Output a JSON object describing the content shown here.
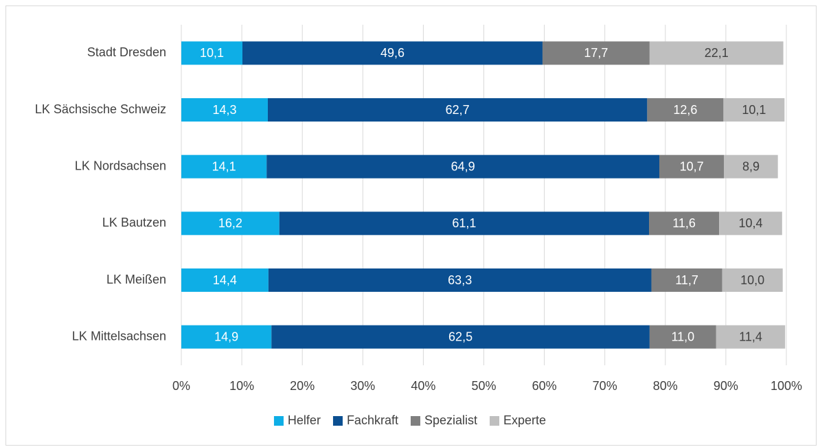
{
  "chart_data": {
    "type": "stacked-barh",
    "categories": [
      "Stadt Dresden",
      "LK Sächsische Schweiz",
      "LK Nordsachsen",
      "LK Bautzen",
      "LK Meißen",
      "LK Mittelsachsen"
    ],
    "series": [
      {
        "name": "Helfer",
        "color": "#0eaee6",
        "values": [
          10.1,
          14.3,
          14.1,
          16.2,
          14.4,
          14.9
        ],
        "value_labels": [
          "10,1",
          "14,3",
          "14,1",
          "16,2",
          "14,4",
          "14,9"
        ]
      },
      {
        "name": "Fachkraft",
        "color": "#0b4f91",
        "values": [
          49.6,
          62.7,
          64.9,
          61.1,
          63.3,
          62.5
        ],
        "value_labels": [
          "49,6",
          "62,7",
          "64,9",
          "61,1",
          "63,3",
          "62,5"
        ]
      },
      {
        "name": "Spezialist",
        "color": "#7f7f7f",
        "values": [
          17.7,
          12.6,
          10.7,
          11.6,
          11.7,
          11.0
        ],
        "value_labels": [
          "17,7",
          "12,6",
          "10,7",
          "11,6",
          "11,7",
          "11,0"
        ]
      },
      {
        "name": "Experte",
        "color": "#bfbfbf",
        "values": [
          22.1,
          10.1,
          8.9,
          10.4,
          10.0,
          11.4
        ],
        "value_labels": [
          "22,1",
          "10,1",
          "8,9",
          "10,4",
          "10,0",
          "11,4"
        ]
      }
    ],
    "xlim": [
      0,
      100
    ],
    "xticks": [
      {
        "value": 0,
        "label": "0%"
      },
      {
        "value": 10,
        "label": "10%"
      },
      {
        "value": 20,
        "label": "20%"
      },
      {
        "value": 30,
        "label": "30%"
      },
      {
        "value": 40,
        "label": "40%"
      },
      {
        "value": 50,
        "label": "50%"
      },
      {
        "value": 60,
        "label": "60%"
      },
      {
        "value": 70,
        "label": "70%"
      },
      {
        "value": 80,
        "label": "80%"
      },
      {
        "value": 90,
        "label": "90%"
      },
      {
        "value": 100,
        "label": "100%"
      }
    ],
    "grid": true,
    "legend": "bottom"
  }
}
